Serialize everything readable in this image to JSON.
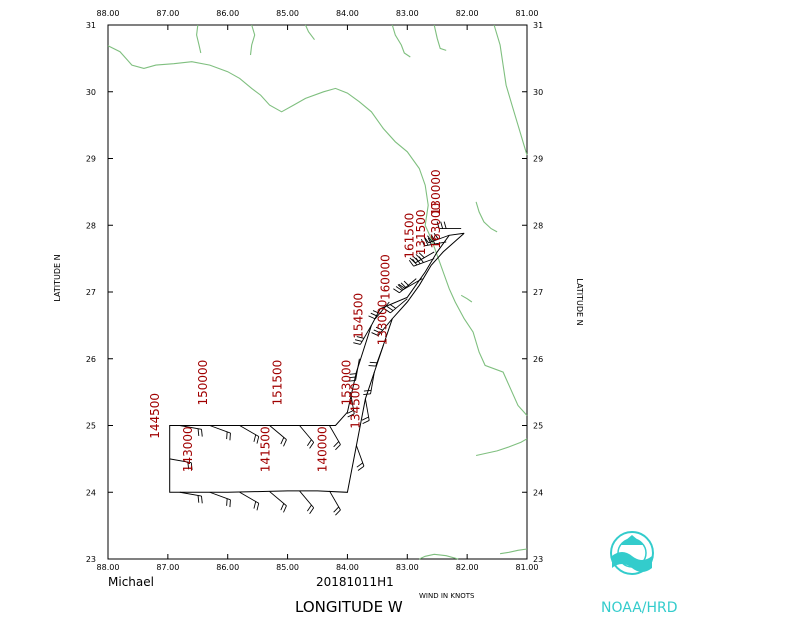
{
  "map": {
    "storm_name": "Michael",
    "flight_id": "20181011H1",
    "x_axis_title": "LONGITUDE   W",
    "y_axis_title": "LATITUDE   N",
    "wind_units": "WIND IN KNOTS",
    "logo_text": "NOAA/HRD",
    "coast_color": "#7fbf7f",
    "track_color": "#000000",
    "time_label_color": "#a00000",
    "logo_color": "#33cccc"
  },
  "chart_data": {
    "type": "map",
    "xlim": [
      88.0,
      81.0
    ],
    "ylim": [
      23.0,
      31.0
    ],
    "x_ticks": [
      "88.00",
      "87.00",
      "86.00",
      "85.00",
      "84.00",
      "83.00",
      "82.00",
      "81.00"
    ],
    "y_ticks": [
      "23",
      "24",
      "25",
      "26",
      "27",
      "28",
      "29",
      "30",
      "31"
    ],
    "flight_track": [
      [
        82.05,
        27.88
      ],
      [
        82.4,
        27.6
      ],
      [
        82.6,
        27.4
      ],
      [
        82.8,
        27.1
      ],
      [
        83.0,
        26.85
      ],
      [
        83.25,
        26.6
      ],
      [
        83.4,
        26.2
      ],
      [
        83.7,
        25.4
      ],
      [
        84.0,
        24.0
      ],
      [
        84.5,
        24.02
      ],
      [
        85.0,
        24.02
      ],
      [
        85.5,
        24.01
      ],
      [
        86.0,
        24.0
      ],
      [
        86.5,
        24.0
      ],
      [
        86.97,
        24.0
      ],
      [
        86.97,
        24.5
      ],
      [
        86.97,
        25.0
      ],
      [
        86.5,
        25.0
      ],
      [
        86.0,
        25.0
      ],
      [
        85.5,
        25.0
      ],
      [
        85.0,
        25.0
      ],
      [
        84.5,
        25.0
      ],
      [
        84.2,
        25.0
      ],
      [
        84.0,
        25.2
      ],
      [
        83.85,
        25.8
      ],
      [
        83.6,
        26.5
      ],
      [
        83.45,
        26.75
      ],
      [
        83.0,
        26.92
      ],
      [
        82.7,
        27.3
      ],
      [
        82.5,
        27.6
      ],
      [
        82.3,
        27.85
      ],
      [
        82.05,
        27.88
      ]
    ],
    "time_labels": [
      {
        "text": "130000",
        "lon": 82.45,
        "lat": 28.15
      },
      {
        "text": "131500",
        "lon": 82.7,
        "lat": 27.55
      },
      {
        "text": "133000",
        "lon": 83.35,
        "lat": 26.2
      },
      {
        "text": "134500",
        "lon": 83.8,
        "lat": 24.95
      },
      {
        "text": "140000",
        "lon": 84.35,
        "lat": 24.3
      },
      {
        "text": "141500",
        "lon": 85.3,
        "lat": 24.3
      },
      {
        "text": "143000",
        "lon": 86.6,
        "lat": 24.3
      },
      {
        "text": "144500",
        "lon": 87.15,
        "lat": 24.8
      },
      {
        "text": "150000",
        "lon": 86.35,
        "lat": 25.3
      },
      {
        "text": "151500",
        "lon": 85.1,
        "lat": 25.3
      },
      {
        "text": "153000",
        "lon": 83.95,
        "lat": 25.3
      },
      {
        "text": "154500",
        "lon": 83.75,
        "lat": 26.3
      },
      {
        "text": "160000",
        "lon": 83.3,
        "lat": 26.88
      },
      {
        "text": "161500",
        "lon": 82.9,
        "lat": 27.5
      },
      {
        "text": "163000",
        "lon": 82.45,
        "lat": 27.65
      }
    ],
    "wind_barbs": [
      {
        "lon": 82.1,
        "lat": 27.95,
        "dir": 270,
        "spd": 30
      },
      {
        "lon": 82.35,
        "lat": 27.75,
        "dir": 260,
        "spd": 40
      },
      {
        "lon": 82.55,
        "lat": 27.5,
        "dir": 250,
        "spd": 35
      },
      {
        "lon": 82.75,
        "lat": 27.2,
        "dir": 240,
        "spd": 30
      },
      {
        "lon": 83.0,
        "lat": 26.9,
        "dir": 230,
        "spd": 25
      },
      {
        "lon": 83.25,
        "lat": 26.6,
        "dir": 220,
        "spd": 25
      },
      {
        "lon": 83.4,
        "lat": 26.2,
        "dir": 200,
        "spd": 20
      },
      {
        "lon": 83.55,
        "lat": 25.8,
        "dir": 190,
        "spd": 20
      },
      {
        "lon": 83.7,
        "lat": 25.4,
        "dir": 170,
        "spd": 20
      },
      {
        "lon": 83.85,
        "lat": 24.7,
        "dir": 160,
        "spd": 15
      },
      {
        "lon": 84.3,
        "lat": 24.02,
        "dir": 150,
        "spd": 15
      },
      {
        "lon": 84.8,
        "lat": 24.02,
        "dir": 140,
        "spd": 15
      },
      {
        "lon": 85.3,
        "lat": 24.01,
        "dir": 130,
        "spd": 15
      },
      {
        "lon": 85.8,
        "lat": 24.0,
        "dir": 120,
        "spd": 15
      },
      {
        "lon": 86.3,
        "lat": 24.0,
        "dir": 110,
        "spd": 15
      },
      {
        "lon": 86.8,
        "lat": 24.0,
        "dir": 100,
        "spd": 15
      },
      {
        "lon": 86.97,
        "lat": 24.5,
        "dir": 100,
        "spd": 15
      },
      {
        "lon": 86.8,
        "lat": 25.0,
        "dir": 100,
        "spd": 15
      },
      {
        "lon": 86.3,
        "lat": 25.0,
        "dir": 110,
        "spd": 15
      },
      {
        "lon": 85.8,
        "lat": 25.0,
        "dir": 120,
        "spd": 15
      },
      {
        "lon": 85.3,
        "lat": 25.0,
        "dir": 130,
        "spd": 15
      },
      {
        "lon": 84.8,
        "lat": 25.0,
        "dir": 140,
        "spd": 15
      },
      {
        "lon": 84.3,
        "lat": 25.0,
        "dir": 150,
        "spd": 20
      },
      {
        "lon": 83.95,
        "lat": 25.5,
        "dir": 170,
        "spd": 20
      },
      {
        "lon": 83.8,
        "lat": 26.0,
        "dir": 190,
        "spd": 25
      },
      {
        "lon": 83.6,
        "lat": 26.5,
        "dir": 210,
        "spd": 25
      },
      {
        "lon": 83.3,
        "lat": 26.85,
        "dir": 220,
        "spd": 30
      },
      {
        "lon": 82.85,
        "lat": 27.2,
        "dir": 230,
        "spd": 30
      },
      {
        "lon": 82.55,
        "lat": 27.6,
        "dir": 240,
        "spd": 35
      },
      {
        "lon": 82.3,
        "lat": 27.85,
        "dir": 250,
        "spd": 40
      }
    ],
    "coastline": [
      [
        [
          88.0,
          30.69
        ],
        [
          87.8,
          30.6
        ],
        [
          87.6,
          30.4
        ],
        [
          87.4,
          30.35
        ],
        [
          87.2,
          30.4
        ],
        [
          86.9,
          30.42
        ],
        [
          86.6,
          30.45
        ],
        [
          86.3,
          30.4
        ],
        [
          86.0,
          30.3
        ],
        [
          85.8,
          30.2
        ],
        [
          85.6,
          30.05
        ],
        [
          85.45,
          29.95
        ],
        [
          85.3,
          29.8
        ],
        [
          85.1,
          29.7
        ],
        [
          84.9,
          29.8
        ],
        [
          84.7,
          29.9
        ],
        [
          84.4,
          30.0
        ],
        [
          84.2,
          30.05
        ],
        [
          84.0,
          29.98
        ],
        [
          83.8,
          29.85
        ],
        [
          83.6,
          29.7
        ],
        [
          83.4,
          29.45
        ],
        [
          83.2,
          29.25
        ],
        [
          83.0,
          29.1
        ],
        [
          82.8,
          28.85
        ],
        [
          82.7,
          28.6
        ],
        [
          82.65,
          28.3
        ],
        [
          82.7,
          28.0
        ],
        [
          82.6,
          27.8
        ],
        [
          82.5,
          27.55
        ],
        [
          82.4,
          27.3
        ],
        [
          82.3,
          27.05
        ],
        [
          82.2,
          26.85
        ],
        [
          82.05,
          26.6
        ],
        [
          81.9,
          26.4
        ],
        [
          81.8,
          26.1
        ],
        [
          81.7,
          25.9
        ],
        [
          81.4,
          25.8
        ],
        [
          81.15,
          25.3
        ],
        [
          81.0,
          25.15
        ]
      ],
      [
        [
          81.55,
          31.0
        ],
        [
          81.45,
          30.7
        ],
        [
          81.4,
          30.4
        ],
        [
          81.35,
          30.1
        ],
        [
          81.25,
          29.8
        ],
        [
          81.15,
          29.5
        ],
        [
          81.05,
          29.2
        ],
        [
          81.0,
          29.05
        ]
      ],
      [
        [
          86.5,
          31.0
        ],
        [
          86.52,
          30.85
        ],
        [
          86.48,
          30.7
        ],
        [
          86.45,
          30.58
        ]
      ],
      [
        [
          85.6,
          31.0
        ],
        [
          85.55,
          30.85
        ],
        [
          85.6,
          30.7
        ],
        [
          85.62,
          30.55
        ]
      ],
      [
        [
          84.7,
          31.0
        ],
        [
          84.65,
          30.9
        ],
        [
          84.55,
          30.78
        ]
      ],
      [
        [
          83.25,
          31.0
        ],
        [
          83.2,
          30.85
        ],
        [
          83.1,
          30.7
        ],
        [
          83.05,
          30.58
        ],
        [
          82.95,
          30.52
        ]
      ],
      [
        [
          82.55,
          31.0
        ],
        [
          82.5,
          30.8
        ],
        [
          82.45,
          30.65
        ],
        [
          82.35,
          30.62
        ]
      ],
      [
        [
          81.85,
          28.35
        ],
        [
          81.8,
          28.2
        ],
        [
          81.72,
          28.05
        ],
        [
          81.6,
          27.95
        ],
        [
          81.5,
          27.9
        ]
      ],
      [
        [
          82.1,
          26.95
        ],
        [
          82.0,
          26.9
        ],
        [
          81.92,
          26.85
        ]
      ],
      [
        [
          81.85,
          24.55
        ],
        [
          81.7,
          24.58
        ],
        [
          81.5,
          24.62
        ],
        [
          81.3,
          24.68
        ],
        [
          81.1,
          24.75
        ],
        [
          81.0,
          24.8
        ]
      ],
      [
        [
          81.45,
          23.08
        ],
        [
          81.3,
          23.1
        ],
        [
          81.15,
          23.13
        ],
        [
          81.0,
          23.15
        ]
      ],
      [
        [
          82.8,
          23.0
        ],
        [
          82.7,
          23.04
        ],
        [
          82.55,
          23.07
        ],
        [
          82.35,
          23.05
        ],
        [
          82.15,
          23.0
        ]
      ]
    ]
  }
}
